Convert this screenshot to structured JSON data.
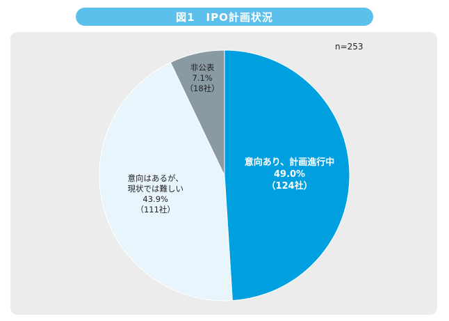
{
  "title": "図1　IPO計画状況",
  "sample_size": "n=253",
  "colors": {
    "title_bg": "#5bc0eb",
    "panel_bg": "#ececec",
    "slice_planning": "#00a0e0",
    "slice_difficult": "#e8f5fd",
    "slice_undisclosed": "#8a9aa3"
  },
  "chart_data": {
    "type": "pie",
    "start": "top, clockwise",
    "slices": [
      {
        "label": "意向あり、計画進行中",
        "value": 49.0,
        "value_text": "49.0%",
        "count_text": "（124社）",
        "color": "#00a0e0",
        "text_color": "#ffffff"
      },
      {
        "label": "意向はあるが、現状では難しい",
        "label_lines": [
          "意向はあるが、",
          "現状では難しい"
        ],
        "value": 43.9,
        "value_text": "43.9%",
        "count_text": "（111社）",
        "color": "#e8f5fd",
        "text_color": "#222222"
      },
      {
        "label": "非公表",
        "value": 7.1,
        "value_text": "7.1%",
        "count_text": "（18社）",
        "color": "#8a9aa3",
        "text_color": "#222222"
      }
    ]
  }
}
